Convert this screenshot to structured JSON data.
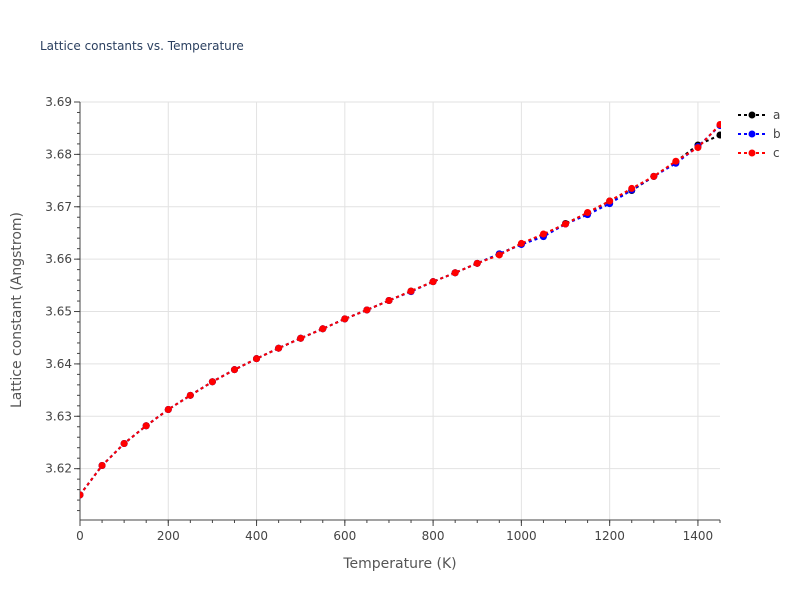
{
  "chart_data": {
    "type": "line",
    "title": "Lattice constants vs. Temperature",
    "xlabel": "Temperature (K)",
    "ylabel": "Lattice constant (Angstrom)",
    "xlim": [
      0,
      1450
    ],
    "ylim": [
      3.6102,
      3.69
    ],
    "xticks": [
      0,
      200,
      400,
      600,
      800,
      1000,
      1200,
      1400
    ],
    "yticks": [
      3.62,
      3.63,
      3.64,
      3.65,
      3.66,
      3.67,
      3.68,
      3.69
    ],
    "grid": true,
    "legend_position": "top-right",
    "x": [
      0,
      50,
      100,
      150,
      200,
      250,
      300,
      350,
      400,
      450,
      500,
      550,
      600,
      650,
      700,
      750,
      800,
      850,
      900,
      950,
      1000,
      1050,
      1100,
      1150,
      1200,
      1250,
      1300,
      1350,
      1400,
      1450
    ],
    "series": [
      {
        "name": "a",
        "color": "#000000",
        "values": [
          3.615,
          3.6206,
          3.6248,
          3.6282,
          3.6313,
          3.634,
          3.6366,
          3.6389,
          3.641,
          3.643,
          3.6449,
          3.6467,
          3.6486,
          3.6503,
          3.6521,
          3.6539,
          3.6557,
          3.6574,
          3.6592,
          3.661,
          3.6629,
          3.6646,
          3.6668,
          3.6688,
          3.6711,
          3.6731,
          3.6758,
          3.6786,
          3.6818,
          3.6837
        ]
      },
      {
        "name": "b",
        "color": "#0000ff",
        "values": [
          3.615,
          3.6206,
          3.6248,
          3.6282,
          3.6313,
          3.634,
          3.6366,
          3.6389,
          3.641,
          3.643,
          3.6449,
          3.6467,
          3.6486,
          3.6503,
          3.6521,
          3.6538,
          3.6557,
          3.6574,
          3.6592,
          3.661,
          3.6628,
          3.6643,
          3.6667,
          3.6685,
          3.6706,
          3.6732,
          3.6758,
          3.6783,
          3.6815,
          3.6855
        ]
      },
      {
        "name": "c",
        "color": "#ff0000",
        "values": [
          3.615,
          3.6206,
          3.6248,
          3.6282,
          3.6313,
          3.634,
          3.6366,
          3.6389,
          3.641,
          3.643,
          3.6449,
          3.6467,
          3.6486,
          3.6503,
          3.6521,
          3.6539,
          3.6557,
          3.6574,
          3.6592,
          3.6608,
          3.663,
          3.6648,
          3.6667,
          3.6689,
          3.6711,
          3.6735,
          3.6758,
          3.6787,
          3.6813,
          3.6857
        ]
      }
    ]
  }
}
